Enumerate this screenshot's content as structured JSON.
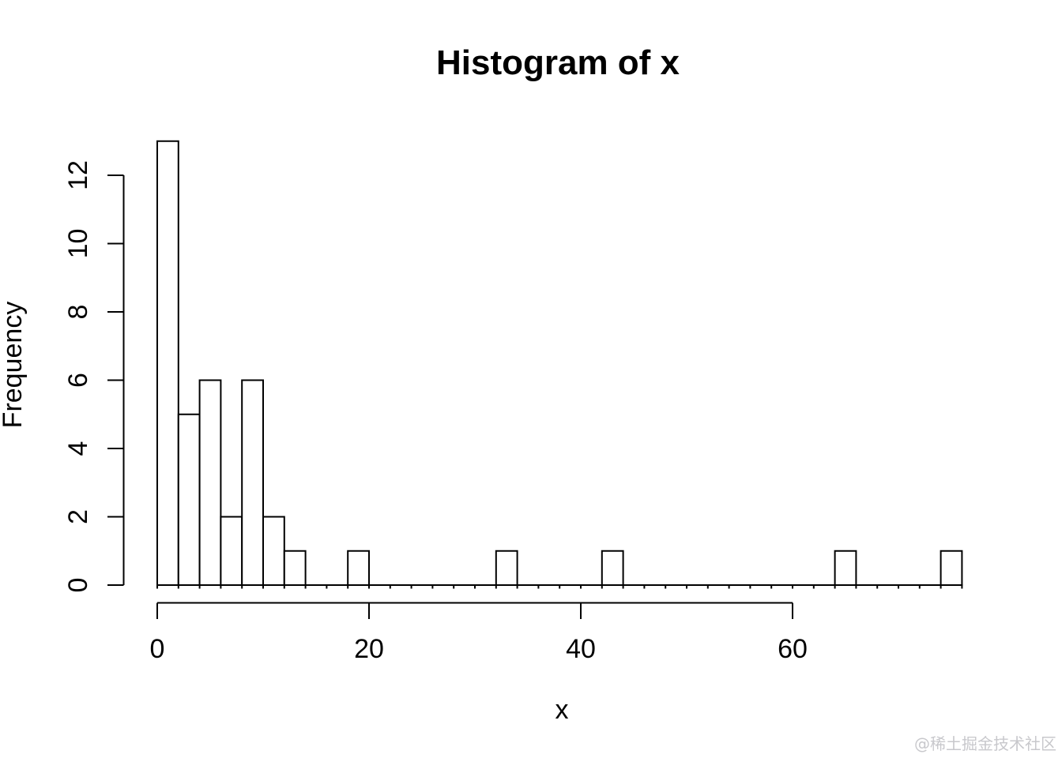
{
  "page": {
    "background_color": "#ffffff",
    "line_color": "#000000"
  },
  "watermark": {
    "text": "@稀土掘金技术社区",
    "color": "#c8c8cc"
  },
  "chart_data": {
    "type": "bar",
    "subtype": "histogram",
    "title": "Histogram of x",
    "xlabel": "x",
    "ylabel": "Frequency",
    "bin_width": 2,
    "domain": [
      0,
      76
    ],
    "bins": [
      {
        "start": 0,
        "end": 2,
        "count": 13
      },
      {
        "start": 2,
        "end": 4,
        "count": 5
      },
      {
        "start": 4,
        "end": 6,
        "count": 6
      },
      {
        "start": 6,
        "end": 8,
        "count": 2
      },
      {
        "start": 8,
        "end": 10,
        "count": 6
      },
      {
        "start": 10,
        "end": 12,
        "count": 2
      },
      {
        "start": 12,
        "end": 14,
        "count": 1
      },
      {
        "start": 18,
        "end": 20,
        "count": 1
      },
      {
        "start": 32,
        "end": 34,
        "count": 1
      },
      {
        "start": 42,
        "end": 44,
        "count": 1
      },
      {
        "start": 64,
        "end": 66,
        "count": 1
      },
      {
        "start": 74,
        "end": 76,
        "count": 1
      }
    ],
    "x_ticks": [
      0,
      20,
      40,
      60
    ],
    "y_ticks": [
      0,
      2,
      4,
      6,
      8,
      10,
      12
    ],
    "xlim": [
      0,
      76
    ],
    "ylim": [
      0,
      13
    ],
    "grid": "off",
    "legend": "none",
    "bar_fill": "#ffffff",
    "bar_stroke": "#000000"
  }
}
